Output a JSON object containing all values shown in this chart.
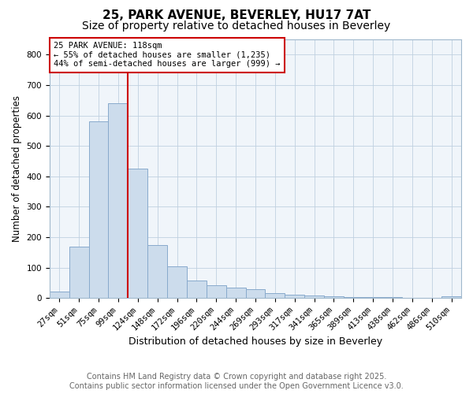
{
  "title_line1": "25, PARK AVENUE, BEVERLEY, HU17 7AT",
  "title_line2": "Size of property relative to detached houses in Beverley",
  "xlabel": "Distribution of detached houses by size in Beverley",
  "ylabel": "Number of detached properties",
  "categories": [
    "27sqm",
    "51sqm",
    "75sqm",
    "99sqm",
    "124sqm",
    "148sqm",
    "172sqm",
    "196sqm",
    "220sqm",
    "244sqm",
    "269sqm",
    "293sqm",
    "317sqm",
    "341sqm",
    "365sqm",
    "389sqm",
    "413sqm",
    "438sqm",
    "462sqm",
    "486sqm",
    "510sqm"
  ],
  "values": [
    20,
    170,
    580,
    640,
    425,
    175,
    105,
    57,
    42,
    33,
    30,
    15,
    10,
    8,
    6,
    4,
    3,
    2,
    1,
    1,
    5
  ],
  "bar_color": "#ccdcec",
  "bar_edge_color": "#88aacc",
  "bar_width": 1.0,
  "red_line_color": "#cc0000",
  "red_line_x": 3.5,
  "ylim": [
    0,
    850
  ],
  "yticks": [
    0,
    100,
    200,
    300,
    400,
    500,
    600,
    700,
    800
  ],
  "annotation_text": "25 PARK AVENUE: 118sqm\n← 55% of detached houses are smaller (1,235)\n44% of semi-detached houses are larger (999) →",
  "annotation_box_facecolor": "#ffffff",
  "annotation_box_edgecolor": "#cc0000",
  "annotation_fontsize": 7.5,
  "footer_text": "Contains HM Land Registry data © Crown copyright and database right 2025.\nContains public sector information licensed under the Open Government Licence v3.0.",
  "footer_fontsize": 7,
  "title_fontsize1": 11,
  "title_fontsize2": 10,
  "xlabel_fontsize": 9,
  "ylabel_fontsize": 8.5,
  "tick_fontsize": 7.5,
  "background_color": "#ffffff",
  "plot_bg_color": "#f0f5fa",
  "grid_color": "#c0d0e0",
  "spine_color": "#a0b8cc"
}
